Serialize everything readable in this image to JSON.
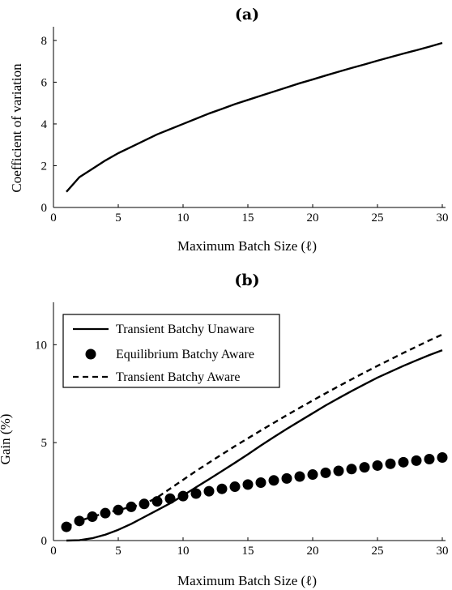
{
  "chart_data": [
    {
      "type": "line",
      "title": "(a)",
      "xlabel": "Maximum Batch Size (ℓ)",
      "ylabel": "Coefficient of variation",
      "xlim": [
        0,
        30
      ],
      "ylim": [
        0,
        8.5
      ],
      "xticks": [
        0,
        5,
        10,
        15,
        20,
        25,
        30
      ],
      "yticks": [
        0,
        2,
        4,
        6,
        8
      ],
      "grid": false,
      "series": [
        {
          "style": "solid",
          "x": [
            1,
            2,
            3,
            4,
            5,
            6,
            7,
            8,
            9,
            10,
            11,
            12,
            13,
            14,
            15,
            16,
            17,
            18,
            19,
            20,
            21,
            22,
            23,
            24,
            25,
            26,
            27,
            28,
            29,
            30
          ],
          "y": [
            0.75,
            1.45,
            1.85,
            2.25,
            2.6,
            2.9,
            3.2,
            3.5,
            3.75,
            4.0,
            4.25,
            4.5,
            4.72,
            4.95,
            5.15,
            5.35,
            5.55,
            5.75,
            5.95,
            6.13,
            6.32,
            6.5,
            6.68,
            6.85,
            7.03,
            7.2,
            7.37,
            7.53,
            7.7,
            7.88
          ]
        }
      ]
    },
    {
      "type": "line",
      "title": "(b)",
      "xlabel": "Maximum Batch Size (ℓ)",
      "ylabel": "Gain (%)",
      "xlim": [
        0,
        30
      ],
      "ylim": [
        0,
        12
      ],
      "xticks": [
        0,
        5,
        10,
        15,
        20,
        25,
        30
      ],
      "yticks": [
        0,
        5,
        10
      ],
      "grid": false,
      "legend_position": "top-left",
      "series": [
        {
          "name": "Transient Batchy Unaware",
          "style": "solid",
          "x": [
            1,
            2,
            3,
            4,
            5,
            6,
            7,
            8,
            9,
            10,
            11,
            12,
            13,
            14,
            15,
            16,
            17,
            18,
            19,
            20,
            21,
            22,
            23,
            24,
            25,
            26,
            27,
            28,
            29,
            30
          ],
          "y": [
            0.0,
            0.02,
            0.12,
            0.3,
            0.55,
            0.85,
            1.2,
            1.55,
            1.9,
            2.3,
            2.72,
            3.13,
            3.55,
            3.97,
            4.4,
            4.85,
            5.28,
            5.7,
            6.1,
            6.5,
            6.9,
            7.27,
            7.63,
            7.98,
            8.32,
            8.62,
            8.92,
            9.2,
            9.47,
            9.72
          ]
        },
        {
          "name": "Equilibrium Batchy Aware",
          "style": "markers",
          "x": [
            1,
            2,
            3,
            4,
            5,
            6,
            7,
            8,
            9,
            10,
            11,
            12,
            13,
            14,
            15,
            16,
            17,
            18,
            19,
            20,
            21,
            22,
            23,
            24,
            25,
            26,
            27,
            28,
            29,
            30
          ],
          "y": [
            0.7,
            1.0,
            1.22,
            1.4,
            1.56,
            1.72,
            1.87,
            2.0,
            2.14,
            2.27,
            2.4,
            2.52,
            2.64,
            2.75,
            2.86,
            2.96,
            3.07,
            3.17,
            3.27,
            3.37,
            3.46,
            3.56,
            3.65,
            3.74,
            3.83,
            3.92,
            4.0,
            4.08,
            4.16,
            4.24
          ]
        },
        {
          "name": "Transient Batchy Aware",
          "style": "dashed",
          "x": [
            1,
            2,
            3,
            4,
            5,
            6,
            7,
            8,
            9,
            10,
            11,
            12,
            13,
            14,
            15,
            16,
            17,
            18,
            19,
            20,
            21,
            22,
            23,
            24,
            25,
            26,
            27,
            28,
            29,
            30
          ],
          "y": [
            0.7,
            1.0,
            1.22,
            1.4,
            1.56,
            1.72,
            1.87,
            2.2,
            2.65,
            3.1,
            3.55,
            3.98,
            4.4,
            4.82,
            5.22,
            5.62,
            6.01,
            6.4,
            6.78,
            7.15,
            7.52,
            7.88,
            8.23,
            8.58,
            8.92,
            9.25,
            9.58,
            9.9,
            10.22,
            10.52
          ]
        }
      ]
    }
  ]
}
